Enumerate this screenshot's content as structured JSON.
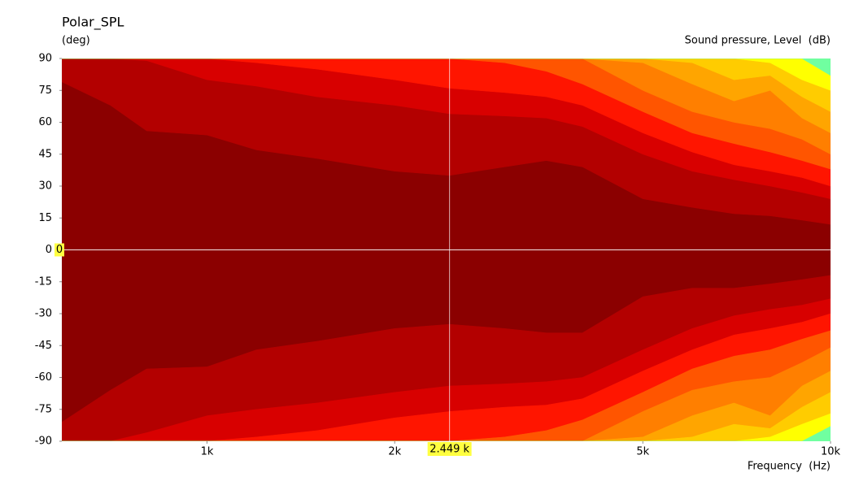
{
  "chart_data": {
    "type": "contour",
    "title": "Polar_SPL",
    "y_label": "(deg)",
    "legend_label": "Sound pressure, Level  (dB)",
    "x_label": "Frequency  (Hz)",
    "log_x": true,
    "xlim": [
      585,
      10000
    ],
    "ylim": [
      -90,
      90
    ],
    "xticks": [
      {
        "value": 1000,
        "label": "1k"
      },
      {
        "value": 2000,
        "label": "2k"
      },
      {
        "value": 5000,
        "label": "5k"
      },
      {
        "value": 10000,
        "label": "10k"
      }
    ],
    "yticks": [
      90,
      75,
      60,
      45,
      30,
      15,
      0,
      -15,
      -30,
      -45,
      -60,
      -75,
      -90
    ],
    "base_color": "#8b0000",
    "x": [
      585,
      700,
      800,
      1000,
      1200,
      1500,
      2000,
      2449,
      3000,
      3500,
      4000,
      5000,
      6000,
      7000,
      8000,
      9000,
      10000
    ],
    "series": [
      {
        "color": "#b30000",
        "upper": [
          79,
          68,
          56,
          54,
          47,
          43,
          37,
          35,
          39,
          42,
          39,
          24,
          20,
          17,
          16,
          14,
          12
        ],
        "lower": [
          -81,
          -66,
          -56,
          -55,
          -47,
          -43,
          -37,
          -35,
          -37,
          -39,
          -39,
          -22,
          -18,
          -18,
          -16,
          -14,
          -12
        ]
      },
      {
        "color": "#d80000",
        "upper": [
          90,
          90,
          89,
          80,
          77,
          72,
          68,
          64,
          63,
          62,
          58,
          45,
          37,
          33,
          30,
          27,
          24
        ],
        "lower": [
          -90,
          -90,
          -86,
          -78,
          -75,
          -72,
          -67,
          -64,
          -63,
          -62,
          -60,
          -47,
          -37,
          -31,
          -28,
          -26,
          -23
        ]
      },
      {
        "color": "#ff1500",
        "upper": [
          90,
          90,
          90,
          90,
          88,
          85,
          80,
          76,
          74,
          72,
          68,
          55,
          46,
          40,
          37,
          34,
          30
        ],
        "lower": [
          -90,
          -90,
          -90,
          -90,
          -88,
          -85,
          -79,
          -76,
          -74,
          -73,
          -70,
          -57,
          -47,
          -40,
          -37,
          -34,
          -30
        ]
      },
      {
        "color": "#ff5500",
        "upper": [
          90,
          90,
          90,
          90,
          90,
          90,
          90,
          90,
          88,
          84,
          78,
          65,
          55,
          50,
          46,
          42,
          38
        ],
        "lower": [
          -90,
          -90,
          -90,
          -90,
          -90,
          -90,
          -90,
          -90,
          -88,
          -85,
          -80,
          -67,
          -56,
          -50,
          -47,
          -42,
          -38
        ]
      },
      {
        "color": "#ff7f00",
        "upper": [
          90,
          90,
          90,
          90,
          90,
          90,
          90,
          90,
          90,
          90,
          90,
          75,
          65,
          60,
          57,
          52,
          45
        ],
        "lower": [
          -90,
          -90,
          -90,
          -90,
          -90,
          -90,
          -90,
          -90,
          -90,
          -90,
          -90,
          -76,
          -66,
          -62,
          -60,
          -53,
          -46
        ]
      },
      {
        "color": "#ffa500",
        "upper": [
          90,
          90,
          90,
          90,
          90,
          90,
          90,
          90,
          90,
          90,
          90,
          88,
          78,
          70,
          75,
          62,
          55
        ],
        "lower": [
          -90,
          -90,
          -90,
          -90,
          -90,
          -90,
          -90,
          -90,
          -90,
          -90,
          -90,
          -88,
          -78,
          -72,
          -78,
          -64,
          -57
        ]
      },
      {
        "color": "#ffcc00",
        "upper": [
          90,
          90,
          90,
          90,
          90,
          90,
          90,
          90,
          90,
          90,
          90,
          90,
          88,
          80,
          82,
          72,
          65
        ],
        "lower": [
          -90,
          -90,
          -90,
          -90,
          -90,
          -90,
          -90,
          -90,
          -90,
          -90,
          -90,
          -90,
          -88,
          -82,
          -84,
          -74,
          -67
        ]
      },
      {
        "color": "#ffff00",
        "upper": [
          90,
          90,
          90,
          90,
          90,
          90,
          90,
          90,
          90,
          90,
          90,
          90,
          90,
          90,
          88,
          80,
          75
        ],
        "lower": [
          -90,
          -90,
          -90,
          -90,
          -90,
          -90,
          -90,
          -90,
          -90,
          -90,
          -90,
          -90,
          -90,
          -90,
          -88,
          -82,
          -77
        ]
      },
      {
        "color": "#70ffa0",
        "upper": [
          90,
          90,
          90,
          90,
          90,
          90,
          90,
          90,
          90,
          90,
          90,
          90,
          90,
          90,
          90,
          90,
          82
        ],
        "lower": [
          -90,
          -90,
          -90,
          -90,
          -90,
          -90,
          -90,
          -90,
          -90,
          -90,
          -90,
          -90,
          -90,
          -90,
          -90,
          -90,
          -83
        ]
      }
    ],
    "cursor": {
      "x": {
        "value": 2449,
        "label": "2.449 k"
      },
      "y": {
        "value": 0,
        "label": "0"
      },
      "color": "#ffff40"
    }
  }
}
